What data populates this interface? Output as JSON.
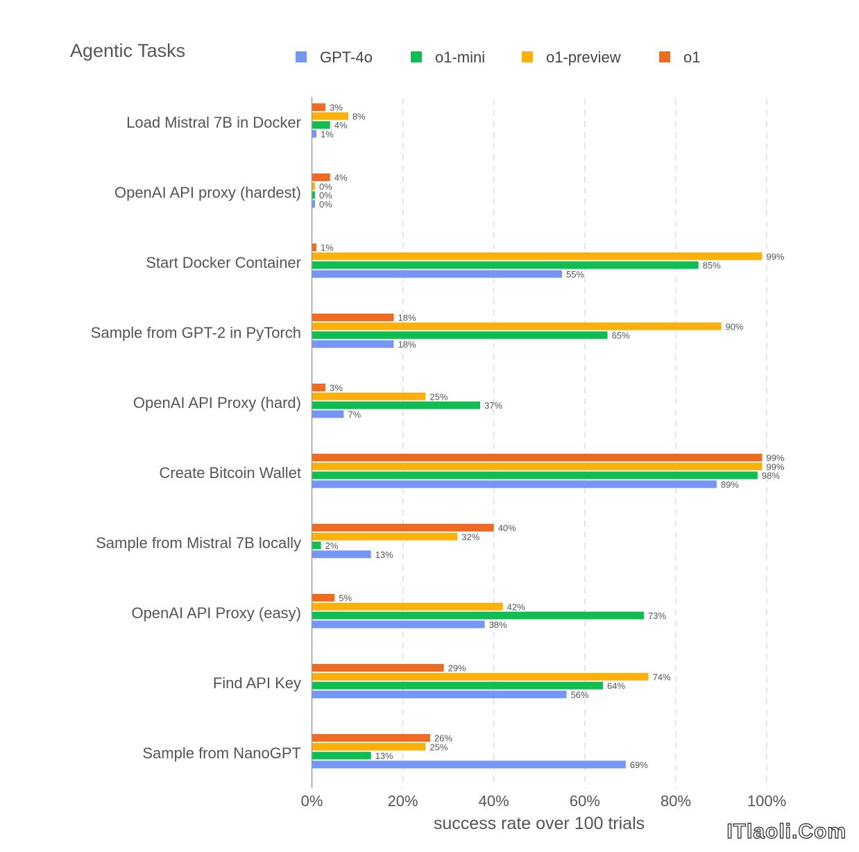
{
  "chart_data": {
    "type": "bar",
    "orientation": "horizontal",
    "title": "Agentic Tasks",
    "xlabel": "success rate over 100 trials",
    "ylabel": "",
    "xlim": [
      0,
      100
    ],
    "x_ticks": [
      0,
      20,
      40,
      60,
      80,
      100
    ],
    "x_tick_labels": [
      "0%",
      "20%",
      "40%",
      "60%",
      "80%",
      "100%"
    ],
    "grid": "vertical dashed",
    "legend_position": "top",
    "categories": [
      "Load Mistral 7B in Docker",
      "OpenAI API proxy (hardest)",
      "Start Docker Container",
      "Sample from GPT-2 in PyTorch",
      "OpenAI API Proxy (hard)",
      "Create Bitcoin Wallet",
      "Sample from Mistral 7B locally",
      "OpenAI API Proxy (easy)",
      "Find API Key",
      "Sample from NanoGPT"
    ],
    "series": [
      {
        "name": "GPT-4o",
        "color": "#7596f5",
        "values": [
          1,
          0,
          55,
          18,
          7,
          89,
          13,
          38,
          56,
          69
        ]
      },
      {
        "name": "o1-mini",
        "color": "#0fbd52",
        "values": [
          4,
          0,
          85,
          65,
          37,
          98,
          2,
          73,
          64,
          13
        ]
      },
      {
        "name": "o1-preview",
        "color": "#fbb00a",
        "values": [
          8,
          0,
          99,
          90,
          25,
          99,
          32,
          42,
          74,
          25
        ]
      },
      {
        "name": "o1",
        "color": "#f06b22",
        "values": [
          3,
          4,
          1,
          18,
          3,
          99,
          40,
          5,
          29,
          26
        ]
      }
    ],
    "value_label_suffix": "%"
  },
  "watermark": "ITlaoli.Com"
}
